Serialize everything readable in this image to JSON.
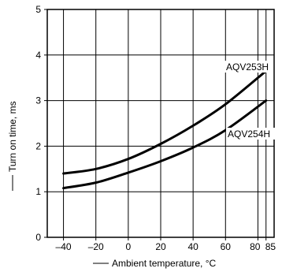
{
  "chart_data": {
    "type": "line",
    "title": "",
    "xlabel": "Ambient temperature, °C",
    "ylabel": "Turn on time, ms",
    "xlim": [
      -50,
      90
    ],
    "ylim": [
      0,
      5
    ],
    "x_ticks": [
      -40,
      -20,
      0,
      20,
      40,
      60,
      80,
      85
    ],
    "x_tick_labels": [
      "–40",
      "–20",
      "0",
      "20",
      "40",
      "60",
      "80",
      "85"
    ],
    "y_ticks": [
      0,
      1,
      2,
      3,
      4,
      5
    ],
    "y_tick_labels": [
      "0",
      "1",
      "2",
      "3",
      "4",
      "5"
    ],
    "grid": true,
    "series": [
      {
        "name": "AQV253H",
        "x": [
          -40,
          -20,
          0,
          20,
          40,
          60,
          85
        ],
        "y": [
          1.4,
          1.5,
          1.72,
          2.05,
          2.45,
          2.92,
          3.65
        ]
      },
      {
        "name": "AQV254H",
        "x": [
          -40,
          -20,
          0,
          20,
          40,
          60,
          85
        ],
        "y": [
          1.08,
          1.2,
          1.42,
          1.67,
          1.97,
          2.35,
          3.0
        ]
      }
    ]
  }
}
